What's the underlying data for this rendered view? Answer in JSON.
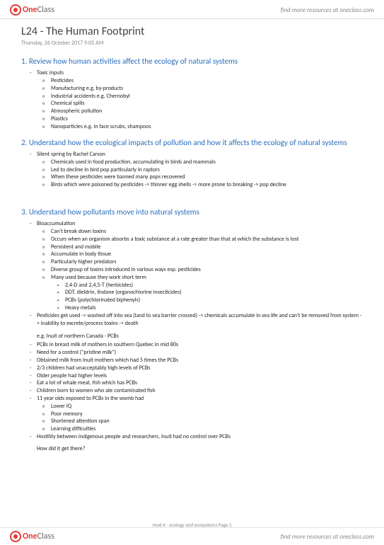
{
  "brand": {
    "one": "One",
    "class": "Class"
  },
  "find_more": "find more resources at oneclass.com",
  "title": "L24 - The Human Footprint",
  "subtitle": "Thursday, 26 October 2017     9:05 AM",
  "sections": [
    {
      "num": "1.",
      "head": "Review how human activities affect the ecology of natural systems",
      "items": [
        {
          "t": "Toxic inputs",
          "sub": [
            {
              "t": "Pesticides"
            },
            {
              "t": "Manufacturing e.g. by-products"
            },
            {
              "t": "Industrial accidents e.g. Chernobyl"
            },
            {
              "t": "Chemical spills"
            },
            {
              "t": "Atmospheric pollution"
            },
            {
              "t": "Plastics"
            },
            {
              "t": "Nanoparticles e.g. in face scrubs, shampoos"
            }
          ]
        }
      ]
    },
    {
      "num": "2.",
      "head": "Understand how the ecological impacts of pollution and how it affects the ecology of natural systems",
      "items": [
        {
          "t": "Silent spring by Rachel Carson",
          "sub": [
            {
              "t": "Chemicals used in food production, accumulating in birds and mammals"
            },
            {
              "t": "Led to decline in bird pop particularly in raptors"
            },
            {
              "t": "When these pesticides were banned many pops recovered"
            },
            {
              "t": "Birds which were poisoned by pesticides -> thinner egg shells -> more prone to breaking -> pop decline"
            }
          ]
        }
      ]
    },
    {
      "num": "3.",
      "head": "Understand how pollutants move into natural systems",
      "items": [
        {
          "t": "Bioaccumulation",
          "sub": [
            {
              "t": "Can't break down toxins"
            },
            {
              "t": "Occurs when an organism absorbs a toxic substance at a rate greater than that at which the substance is lost"
            },
            {
              "t": "Persistent and mobile"
            },
            {
              "t": "Accumulate in body tissue"
            },
            {
              "t": "Particularly higher predators"
            },
            {
              "t": "Diverse group of toxins introduced in various ways esp. pesticides"
            },
            {
              "t": "Many used because they work short term",
              "sub": [
                {
                  "t": "2,4-D and 2,4,5-T (herbicides)"
                },
                {
                  "t": "DDT, dieldrin, lindane (organochlorine insecticides)"
                },
                {
                  "t": "PCBs (polychlorinated biphenyls)"
                },
                {
                  "t": "Heavy metals"
                }
              ]
            }
          ]
        },
        {
          "t": "Pesticides get used -> washed off into sea (land to sea barrier crossed) -> chemicals accumulate in sea life and can't be removed from system -> inability to excrete/process toxins -> death"
        }
      ]
    }
  ],
  "eg_head": "e.g. Inuit of northern Canada - PCBs",
  "eg_items": [
    {
      "t": "PCBs in breast milk of mothers in southern Quebec in mid 80s"
    },
    {
      "t": "Need for a control (\"pristine milk\")"
    },
    {
      "t": "Obtained milk from Inuit mothers which had 5 times the PCBs"
    },
    {
      "t": "2/3 children had unacceptably high levels of PCBs"
    },
    {
      "t": "Older people had higher levels"
    },
    {
      "t": "Eat a lot of whale meat, fish which has PCBs"
    },
    {
      "t": "Children born to women who ate contaminated fish"
    },
    {
      "t": "11 year olds exposed to PCBs in the womb had",
      "sub": [
        {
          "t": "Lower IQ"
        },
        {
          "t": "Poor memory"
        },
        {
          "t": "Shortened attention span"
        },
        {
          "t": "Learning difficulties"
        }
      ]
    },
    {
      "t": "Hostility between indigenous people and researchers, Inuit had no control over PCBs"
    }
  ],
  "closing": "How did it get there?",
  "page_footer": "mod 4 - ecology and ecosystems Page 1"
}
